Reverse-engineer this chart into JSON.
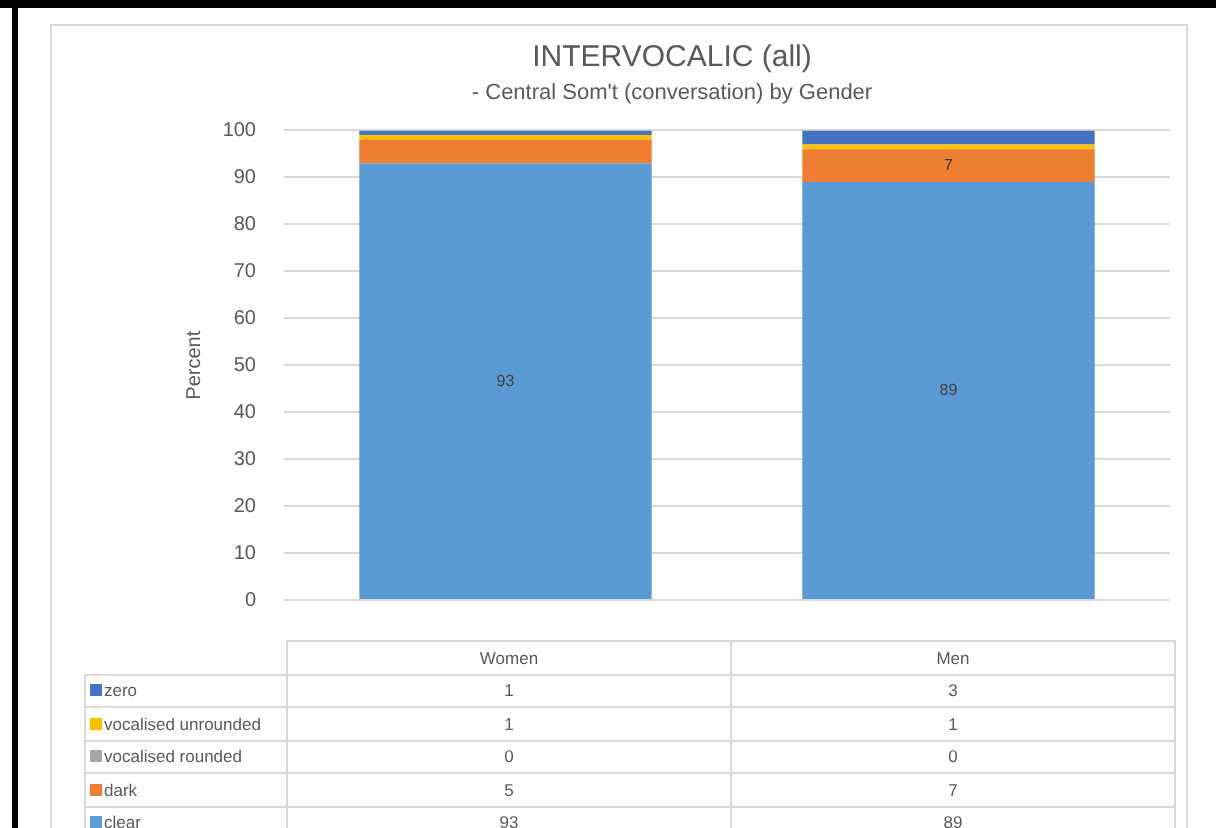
{
  "chart_data": {
    "type": "bar",
    "title": "INTERVOCALIC (all)",
    "subtitle": "- Central Som't (conversation) by Gender",
    "ylabel": "Percent",
    "categories": [
      "Women",
      "Men"
    ],
    "stacked": true,
    "ylim": [
      0,
      100
    ],
    "yticks": [
      0,
      10,
      20,
      30,
      40,
      50,
      60,
      70,
      80,
      90,
      100
    ],
    "grid": "y",
    "legend": "bottom",
    "data_labels": true,
    "series": [
      {
        "name": "clear",
        "color": "#5b9bd5",
        "values": [
          93,
          89
        ],
        "value_labels": [
          "93",
          "89"
        ]
      },
      {
        "name": "dark",
        "color": "#ed7d31",
        "values": [
          5,
          7
        ],
        "value_labels": [
          "5",
          "7"
        ]
      },
      {
        "name": "vocalised rounded",
        "color": "#a5a5a5",
        "values": [
          0,
          0
        ],
        "value_labels": [
          "0",
          "0"
        ]
      },
      {
        "name": "vocalised unrounded",
        "color": "#ffc000",
        "values": [
          1,
          1
        ],
        "value_labels": [
          "1",
          "1"
        ]
      },
      {
        "name": "zero",
        "color": "#4472c4",
        "values": [
          1,
          3
        ],
        "value_labels": [
          "1",
          "3"
        ]
      }
    ]
  }
}
